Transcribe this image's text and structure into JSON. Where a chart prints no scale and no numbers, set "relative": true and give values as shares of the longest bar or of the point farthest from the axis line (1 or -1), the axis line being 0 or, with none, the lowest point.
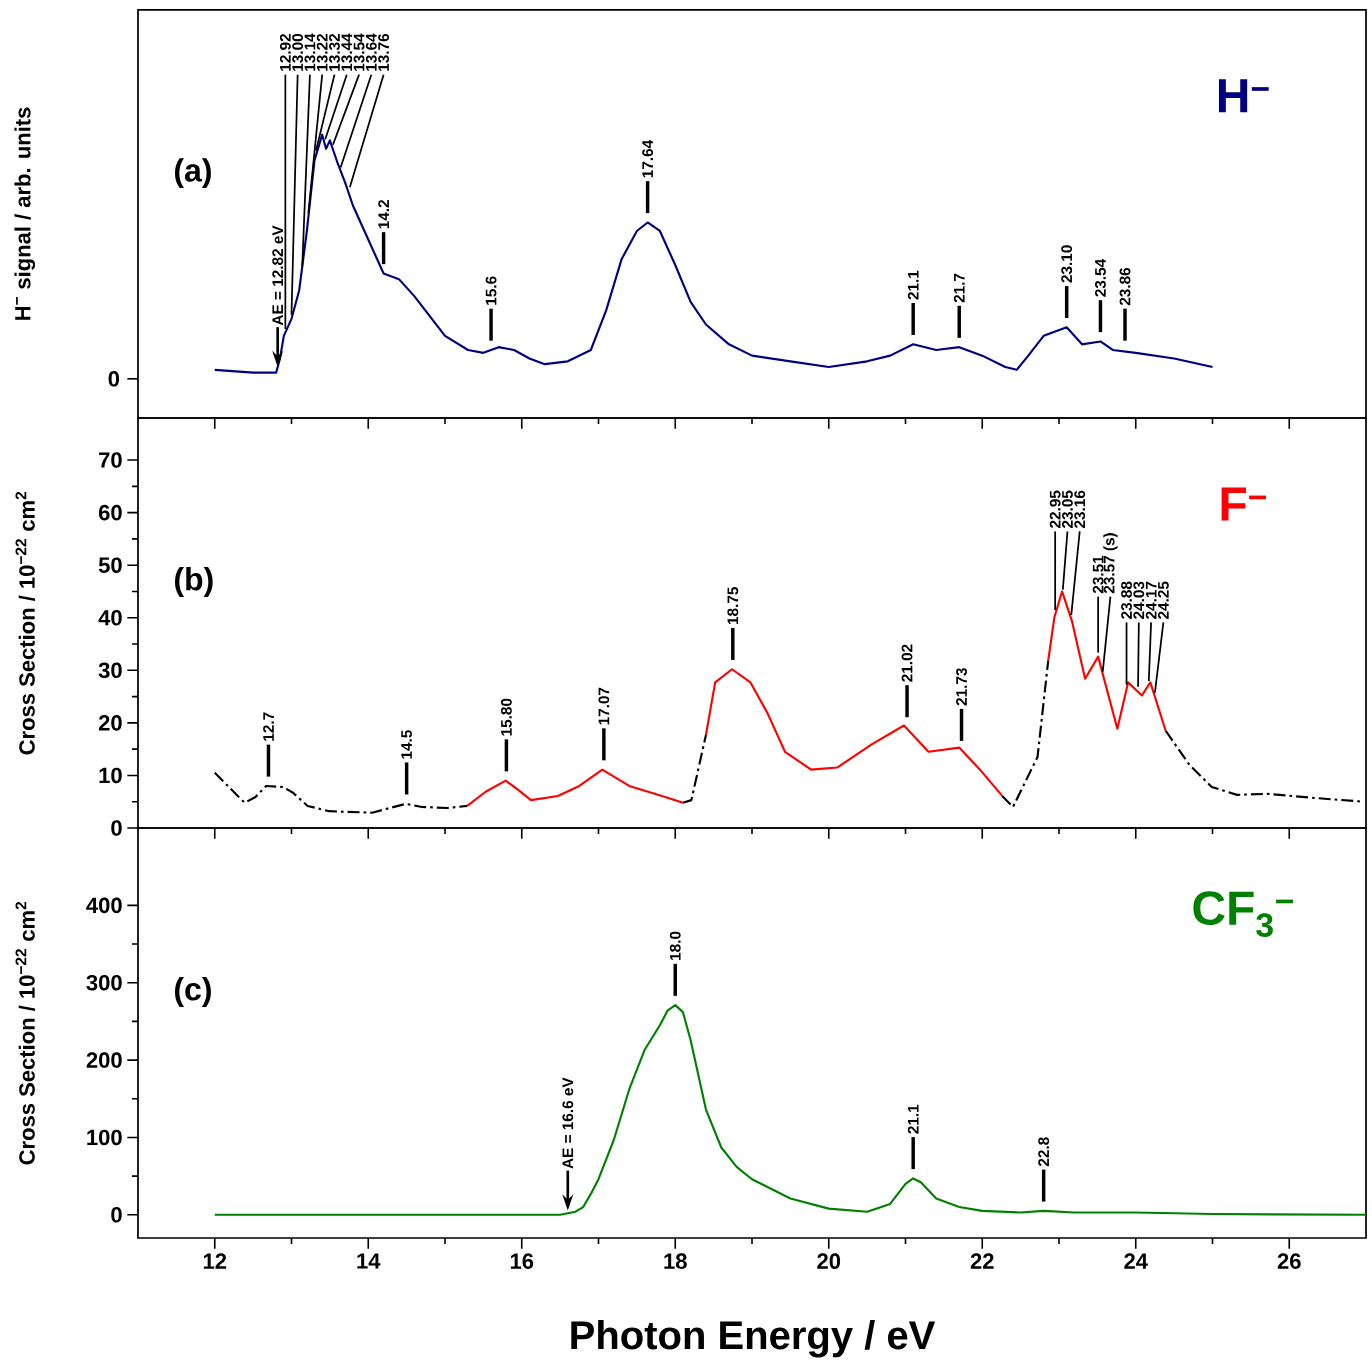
{
  "chart_data": [
    {
      "type": "line",
      "relative": true,
      "xlim": [
        11,
        27
      ],
      "xticks": [
        12,
        14,
        16,
        18,
        20,
        22,
        24,
        26
      ],
      "tick_labels": false,
      "ylabel": "H$^{−}$ signal / arb. units",
      "annotations": [
        "(a)",
        "0",
        {
          "text": "AE = 12.82 eV",
          "x": 12.82,
          "y": 0.17
        },
        {
          "text": "12.92",
          "x": 12.92,
          "y": 0.3
        },
        {
          "text": "13.00",
          "x": 13.0,
          "y": 0.35
        },
        {
          "text": "13.14",
          "x": 13.14,
          "y": 0.52
        },
        {
          "text": "13.22",
          "x": 13.22,
          "y": 0.71
        },
        {
          "text": "13.32",
          "x": 13.32,
          "y": 0.93
        },
        {
          "text": "13.44",
          "x": 13.44,
          "y": 0.97
        },
        {
          "text": "13.54",
          "x": 13.54,
          "y": 0.95
        },
        {
          "text": "13.64",
          "x": 13.64,
          "y": 0.87
        },
        {
          "text": "13.76",
          "x": 13.76,
          "y": 0.8
        },
        {
          "text": "14.2",
          "x": 14.2,
          "y": 0.51
        },
        {
          "text": "15.6",
          "x": 15.6,
          "y": 0.24
        },
        {
          "text": "17.64",
          "x": 17.64,
          "y": 0.69
        },
        {
          "text": "21.1",
          "x": 21.1,
          "y": 0.26
        },
        {
          "text": "21.7",
          "x": 21.7,
          "y": 0.25
        },
        {
          "text": "23.10",
          "x": 23.1,
          "y": 0.32
        },
        {
          "text": "23.54",
          "x": 23.54,
          "y": 0.27
        },
        {
          "text": "23.86",
          "x": 23.86,
          "y": 0.24
        }
      ],
      "series": [
        {
          "name": "H$^{−}$",
          "color": "#000080",
          "x": [
            12.0,
            12.5,
            12.8,
            12.85,
            12.9,
            13.0,
            13.1,
            13.2,
            13.3,
            13.4,
            13.45,
            13.5,
            13.6,
            13.7,
            13.8,
            14.0,
            14.2,
            14.4,
            14.6,
            14.8,
            15.0,
            15.3,
            15.5,
            15.7,
            15.9,
            16.1,
            16.3,
            16.6,
            16.9,
            17.1,
            17.3,
            17.5,
            17.64,
            17.8,
            18.0,
            18.2,
            18.4,
            18.7,
            19.0,
            19.5,
            20.0,
            20.5,
            20.8,
            21.1,
            21.4,
            21.7,
            22.0,
            22.3,
            22.45,
            22.6,
            22.8,
            23.1,
            23.3,
            23.54,
            23.7,
            24.0,
            24.5,
            25.0
          ],
          "values": [
            0.17,
            0.16,
            0.16,
            0.21,
            0.29,
            0.35,
            0.45,
            0.66,
            0.91,
            1.0,
            0.95,
            0.98,
            0.9,
            0.83,
            0.75,
            0.63,
            0.51,
            0.49,
            0.43,
            0.36,
            0.29,
            0.24,
            0.23,
            0.25,
            0.24,
            0.21,
            0.19,
            0.2,
            0.24,
            0.38,
            0.56,
            0.66,
            0.69,
            0.66,
            0.54,
            0.41,
            0.33,
            0.26,
            0.22,
            0.2,
            0.18,
            0.2,
            0.22,
            0.26,
            0.24,
            0.25,
            0.22,
            0.18,
            0.17,
            0.22,
            0.29,
            0.32,
            0.26,
            0.27,
            0.24,
            0.23,
            0.21,
            0.18
          ]
        }
      ]
    },
    {
      "type": "line",
      "xlim": [
        11,
        27
      ],
      "xticks": [
        12,
        14,
        16,
        18,
        20,
        22,
        24,
        26
      ],
      "ylim": [
        0,
        78
      ],
      "yticks": [
        0,
        10,
        20,
        30,
        40,
        50,
        60,
        70
      ],
      "tick_labels": "y",
      "ylabel": "Cross Section / 10$^{−22}$ cm$^{2}$",
      "annotations": [
        "(b)",
        {
          "text": "12.7",
          "x": 12.7,
          "y": 8.0
        },
        {
          "text": "14.5",
          "x": 14.5,
          "y": 4.6
        },
        {
          "text": "15.80",
          "x": 15.8,
          "y": 9.0
        },
        {
          "text": "17.07",
          "x": 17.07,
          "y": 11.1
        },
        {
          "text": "18.75",
          "x": 18.75,
          "y": 30.2
        },
        {
          "text": "21.02",
          "x": 21.02,
          "y": 19.3
        },
        {
          "text": "21.73",
          "x": 21.73,
          "y": 14.8
        },
        {
          "text": "22.95",
          "x": 22.95,
          "y": 40.7
        },
        {
          "text": "23.05",
          "x": 23.05,
          "y": 44.6
        },
        {
          "text": "23.16",
          "x": 23.16,
          "y": 39.8
        },
        {
          "text": "23.51",
          "x": 23.51,
          "y": 32.6
        },
        {
          "text": "23.57 (s)",
          "x": 23.57,
          "y": 29.0
        },
        {
          "text": "23.88",
          "x": 23.88,
          "y": 26.5
        },
        {
          "text": "24.03",
          "x": 24.03,
          "y": 26.1
        },
        {
          "text": "24.17",
          "x": 24.17,
          "y": 27.2
        },
        {
          "text": "24.25",
          "x": 24.25,
          "y": 25.0
        }
      ],
      "series": [
        {
          "color": "#000000",
          "line_style": "dashdot",
          "x": [
            12.0,
            12.3,
            12.39,
            12.53,
            12.67,
            12.89,
            13.02,
            13.21,
            13.49,
            14.05,
            14.28,
            14.49,
            14.7,
            15.03,
            15.29,
            16.5,
            18.1,
            18.21,
            18.4,
            20.0,
            21.97,
            22.26,
            22.4,
            22.72,
            22.86,
            23.5,
            24.39,
            24.7,
            24.99,
            25.32,
            25.72,
            26.34,
            26.97
          ],
          "values": [
            10.5,
            6.1,
            4.8,
            5.9,
            8.0,
            7.8,
            6.7,
            4.2,
            3.2,
            2.9,
            3.8,
            4.6,
            4.0,
            3.8,
            4.2,
            null,
            4.8,
            5.3,
            17.7,
            null,
            null,
            6.1,
            4.0,
            13.5,
            31.9,
            null,
            18.5,
            12.0,
            7.8,
            6.3,
            6.5,
            5.7,
            5.0
          ]
        },
        {
          "name": "F$^{−}$",
          "color": "#ff0000",
          "x": [
            15.29,
            15.53,
            15.79,
            15.95,
            16.12,
            16.47,
            16.75,
            17.05,
            17.4,
            17.87,
            18.1,
            18.25,
            18.4,
            18.52,
            18.74,
            18.98,
            19.2,
            19.43,
            19.77,
            20.11,
            20.57,
            20.98,
            21.3,
            21.7,
            21.97,
            22.26,
            22.5,
            22.86,
            22.94,
            23.04,
            23.17,
            23.34,
            23.51,
            23.76,
            23.9,
            24.08,
            24.19,
            24.39
          ],
          "values": [
            4.2,
            6.9,
            9.0,
            7.3,
            5.3,
            6.1,
            8.0,
            11.1,
            8.0,
            5.9,
            4.8,
            null,
            17.7,
            27.7,
            30.2,
            27.7,
            21.9,
            14.5,
            11.1,
            11.5,
            16.0,
            19.5,
            14.5,
            15.3,
            11.1,
            6.1,
            null,
            31.9,
            40.1,
            45.0,
            39.3,
            28.4,
            32.6,
            18.9,
            27.7,
            25.2,
            27.7,
            18.5
          ]
        }
      ]
    },
    {
      "type": "line",
      "xlim": [
        11,
        27
      ],
      "xticks": [
        12,
        14,
        16,
        18,
        20,
        22,
        24,
        26
      ],
      "ylim": [
        -30,
        500
      ],
      "yticks": [
        0,
        100,
        200,
        300,
        400
      ],
      "xlabel": "Photon Energy / eV",
      "ylabel": "Cross Section / 10$^{−22}$ cm$^{2}$",
      "annotations": [
        "(c)",
        {
          "text": "AE = 16.6 eV",
          "x": 16.6,
          "y": 2
        },
        {
          "text": "18.0",
          "x": 18.0,
          "y": 271
        },
        {
          "text": "21.1",
          "x": 21.1,
          "y": 47
        },
        {
          "text": "22.8",
          "x": 22.8,
          "y": 5
        }
      ],
      "series": [
        {
          "name": "CF$_{3}$$^{−}$",
          "color": "#008000",
          "x": [
            12.0,
            16.5,
            16.7,
            16.8,
            16.9,
            17.0,
            17.2,
            17.4,
            17.6,
            17.8,
            17.9,
            18.0,
            18.1,
            18.2,
            18.4,
            18.6,
            18.8,
            19.0,
            19.5,
            20.0,
            20.5,
            20.8,
            21.0,
            21.1,
            21.2,
            21.4,
            21.7,
            22.0,
            22.5,
            22.8,
            23.2,
            24.0,
            25.0,
            27.0
          ],
          "values": [
            0,
            0,
            4,
            10,
            27,
            46,
            97,
            162,
            213,
            245,
            264,
            271,
            262,
            226,
            136,
            87,
            62,
            46,
            21,
            8,
            4,
            14,
            40,
            47,
            42,
            21,
            10,
            5,
            3,
            5,
            3,
            3,
            1,
            0
          ]
        }
      ]
    }
  ]
}
